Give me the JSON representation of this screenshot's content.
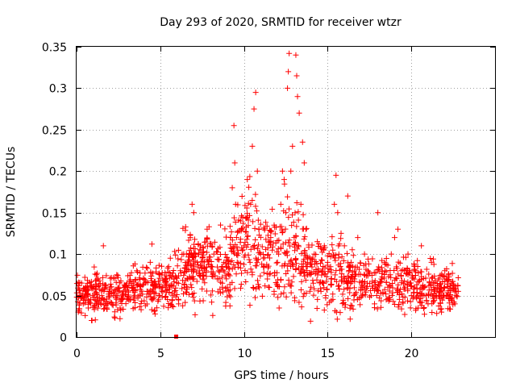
{
  "chart_data": {
    "type": "scatter",
    "title": "Day 293 of 2020, SRMTID for receiver wtzr",
    "xlabel": "GPS time / hours",
    "ylabel": "SRMTID / TECUs",
    "xlim": [
      0,
      25
    ],
    "ylim": [
      0,
      0.35
    ],
    "x_ticks": [
      0,
      5,
      10,
      15,
      20
    ],
    "x_tick_labels": [
      "0",
      "5",
      "10",
      "15",
      "20"
    ],
    "y_ticks": [
      0,
      0.05,
      0.1,
      0.15,
      0.2,
      0.25,
      0.3,
      0.35
    ],
    "y_tick_labels": [
      "0",
      "0.05",
      "0.1",
      "0.15",
      "0.2",
      "0.25",
      "0.3",
      "0.35"
    ],
    "grid": true,
    "marker": "plus",
    "marker_color": "#ff0000",
    "series": [
      {
        "name": "SRMTID",
        "points": [
          [
            0.1,
            0.03
          ],
          [
            0.2,
            0.05
          ],
          [
            0.3,
            0.065
          ],
          [
            0.4,
            0.04
          ],
          [
            0.5,
            0.055
          ],
          [
            0.7,
            0.035
          ],
          [
            0.9,
            0.06
          ],
          [
            1.1,
            0.045
          ],
          [
            1.3,
            0.07
          ],
          [
            1.5,
            0.05
          ],
          [
            1.6,
            0.11
          ],
          [
            1.8,
            0.04
          ],
          [
            2.0,
            0.06
          ],
          [
            2.2,
            0.05
          ],
          [
            2.4,
            0.075
          ],
          [
            2.6,
            0.035
          ],
          [
            2.8,
            0.055
          ],
          [
            3.0,
            0.065
          ],
          [
            3.2,
            0.045
          ],
          [
            3.4,
            0.06
          ],
          [
            3.6,
            0.08
          ],
          [
            3.8,
            0.05
          ],
          [
            4.0,
            0.07
          ],
          [
            4.2,
            0.055
          ],
          [
            4.4,
            0.09
          ],
          [
            4.5,
            0.112
          ],
          [
            4.7,
            0.06
          ],
          [
            4.9,
            0.045
          ],
          [
            5.1,
            0.075
          ],
          [
            5.3,
            0.06
          ],
          [
            5.5,
            0.085
          ],
          [
            5.6,
            0.095
          ],
          [
            5.8,
            0.07
          ],
          [
            6.1,
            0.04
          ],
          [
            6.2,
            0.08
          ],
          [
            6.4,
            0.1
          ],
          [
            6.6,
            0.06
          ],
          [
            6.8,
            0.12
          ],
          [
            6.9,
            0.16
          ],
          [
            7.0,
            0.15
          ],
          [
            7.2,
            0.09
          ],
          [
            7.4,
            0.11
          ],
          [
            7.6,
            0.07
          ],
          [
            7.8,
            0.13
          ],
          [
            8.0,
            0.085
          ],
          [
            8.2,
            0.1
          ],
          [
            8.4,
            0.07
          ],
          [
            8.6,
            0.135
          ],
          [
            8.8,
            0.09
          ],
          [
            9.0,
            0.06
          ],
          [
            9.2,
            0.12
          ],
          [
            9.3,
            0.18
          ],
          [
            9.4,
            0.255
          ],
          [
            9.45,
            0.21
          ],
          [
            9.5,
            0.16
          ],
          [
            9.6,
            0.09
          ],
          [
            9.8,
            0.14
          ],
          [
            10.0,
            0.11
          ],
          [
            10.2,
            0.19
          ],
          [
            10.4,
            0.16
          ],
          [
            10.5,
            0.23
          ],
          [
            10.6,
            0.275
          ],
          [
            10.7,
            0.295
          ],
          [
            10.8,
            0.2
          ],
          [
            10.9,
            0.13
          ],
          [
            11.0,
            0.1
          ],
          [
            11.2,
            0.085
          ],
          [
            11.4,
            0.07
          ],
          [
            11.6,
            0.12
          ],
          [
            11.8,
            0.055
          ],
          [
            12.0,
            0.09
          ],
          [
            12.1,
            0.035
          ],
          [
            12.2,
            0.16
          ],
          [
            12.3,
            0.2
          ],
          [
            12.4,
            0.19
          ],
          [
            12.5,
            0.15
          ],
          [
            12.6,
            0.3
          ],
          [
            12.65,
            0.32
          ],
          [
            12.7,
            0.342
          ],
          [
            12.8,
            0.2
          ],
          [
            12.9,
            0.23
          ],
          [
            13.0,
            0.12
          ],
          [
            13.1,
            0.34
          ],
          [
            13.15,
            0.315
          ],
          [
            13.2,
            0.29
          ],
          [
            13.3,
            0.27
          ],
          [
            13.4,
            0.16
          ],
          [
            13.5,
            0.235
          ],
          [
            13.6,
            0.21
          ],
          [
            13.7,
            0.13
          ],
          [
            13.8,
            0.09
          ],
          [
            14.0,
            0.06
          ],
          [
            14.2,
            0.1
          ],
          [
            14.4,
            0.075
          ],
          [
            14.6,
            0.055
          ],
          [
            14.8,
            0.11
          ],
          [
            15.0,
            0.09
          ],
          [
            15.2,
            0.07
          ],
          [
            15.4,
            0.16
          ],
          [
            15.5,
            0.195
          ],
          [
            15.6,
            0.15
          ],
          [
            15.8,
            0.125
          ],
          [
            16.0,
            0.11
          ],
          [
            16.2,
            0.17
          ],
          [
            16.4,
            0.09
          ],
          [
            16.6,
            0.07
          ],
          [
            16.8,
            0.12
          ],
          [
            17.0,
            0.06
          ],
          [
            17.2,
            0.1
          ],
          [
            17.4,
            0.08
          ],
          [
            17.6,
            0.05
          ],
          [
            17.8,
            0.04
          ],
          [
            18.0,
            0.15
          ],
          [
            18.2,
            0.07
          ],
          [
            18.4,
            0.09
          ],
          [
            18.6,
            0.06
          ],
          [
            18.8,
            0.1
          ],
          [
            19.0,
            0.12
          ],
          [
            19.2,
            0.13
          ],
          [
            19.4,
            0.08
          ],
          [
            19.6,
            0.06
          ],
          [
            19.8,
            0.1
          ],
          [
            20.0,
            0.05
          ],
          [
            20.2,
            0.085
          ],
          [
            20.4,
            0.035
          ],
          [
            20.6,
            0.11
          ],
          [
            20.8,
            0.06
          ],
          [
            21.0,
            0.04
          ],
          [
            21.2,
            0.09
          ],
          [
            21.4,
            0.055
          ],
          [
            21.6,
            0.07
          ],
          [
            21.8,
            0.03
          ],
          [
            22.0,
            0.08
          ],
          [
            22.2,
            0.05
          ],
          [
            22.4,
            0.065
          ],
          [
            22.6,
            0.04
          ],
          [
            22.8,
            0.055
          ]
        ]
      }
    ],
    "dense_band": {
      "x_range": [
        0,
        22.8
      ],
      "profile": [
        [
          0,
          0.05,
          0.012
        ],
        [
          2,
          0.05,
          0.012
        ],
        [
          4,
          0.058,
          0.012
        ],
        [
          5.5,
          0.06,
          0.015
        ],
        [
          6.5,
          0.085,
          0.022
        ],
        [
          8,
          0.09,
          0.022
        ],
        [
          9,
          0.085,
          0.025
        ],
        [
          10,
          0.12,
          0.03
        ],
        [
          11,
          0.1,
          0.03
        ],
        [
          12,
          0.095,
          0.03
        ],
        [
          13,
          0.105,
          0.035
        ],
        [
          14,
          0.08,
          0.022
        ],
        [
          15,
          0.08,
          0.02
        ],
        [
          16,
          0.075,
          0.02
        ],
        [
          17,
          0.065,
          0.018
        ],
        [
          19,
          0.065,
          0.015
        ],
        [
          21,
          0.06,
          0.015
        ],
        [
          22.8,
          0.055,
          0.012
        ]
      ],
      "count": 1500,
      "seed": 293
    },
    "outlier_marker": {
      "x": 5.95,
      "y": 0.0,
      "shape": "square"
    }
  }
}
